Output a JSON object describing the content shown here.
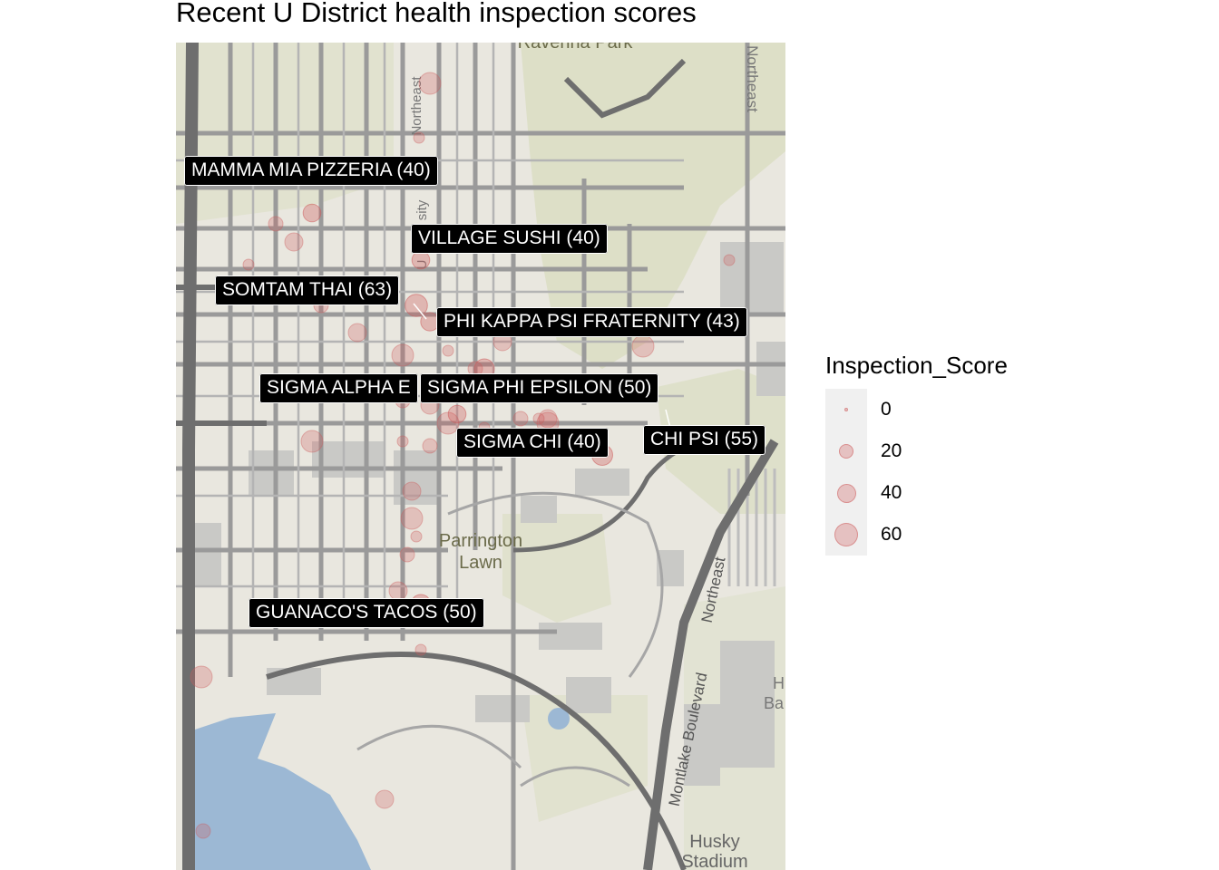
{
  "title": "Recent U District health inspection scores",
  "map": {
    "place_labels": [
      "Ravenna Park",
      "Parrington",
      "Lawn",
      "Husky",
      "Stadium",
      "Northeast",
      "Northeast",
      "U",
      "sity",
      "Montlake Boulevard",
      "Northeast",
      "Ba",
      "H"
    ],
    "points": [
      {
        "name": "MAMMA MIA PIZZERIA",
        "score": 40
      },
      {
        "name": "VILLAGE SUSHI",
        "score": 40
      },
      {
        "name": "SOMTAM THAI",
        "score": 63
      },
      {
        "name": "PHI KAPPA PSI FRATERNITY",
        "score": 43
      },
      {
        "name": "SIGMA ALPHA E",
        "score": 0
      },
      {
        "name": "SIGMA PHI EPSILON",
        "score": 50
      },
      {
        "name": "SIGMA CHI",
        "score": 40
      },
      {
        "name": "CHI PSI",
        "score": 55
      },
      {
        "name": "GUANACO'S TACOS",
        "score": 50
      }
    ],
    "labels": [
      "MAMMA MIA PIZZERIA (40)",
      "VILLAGE SUSHI (40)",
      "SOMTAM THAI (63)",
      "PHI KAPPA PSI FRATERNITY (43)",
      "SIGMA ALPHA E",
      "SIGMA PHI EPSILON (50)",
      "SIGMA CHI (40)",
      "CHI PSI (55)",
      "GUANACO'S TACOS (50)"
    ],
    "colors": {
      "point": "#cd5c5c",
      "water": "#9cb8d4",
      "park": "#d6dcb8",
      "road": "#8a8a8a",
      "label_bg": "#000000"
    }
  },
  "legend": {
    "title": "Inspection_Score",
    "entries": [
      "0",
      "20",
      "40",
      "60"
    ]
  }
}
